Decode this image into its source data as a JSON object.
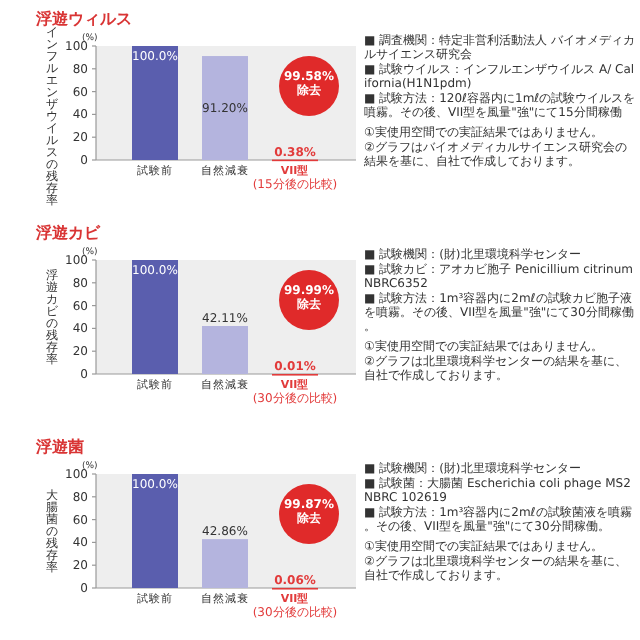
{
  "chart_data": [
    {
      "type": "bar",
      "title": "浮遊ウィルス",
      "ylabel": "インフルエンザウイルスの残存率",
      "categories": [
        "試験前",
        "自然減衰",
        "VII型"
      ],
      "values": [
        100.0,
        91.2,
        0.38
      ],
      "colors": [
        "#5a5eae",
        "#b4b4de",
        "#e23b3b"
      ],
      "value_labels": [
        "100.0%",
        "91.20%",
        "0.38%"
      ],
      "ylim": [
        0,
        100
      ],
      "yticks": [
        0,
        20,
        40,
        60,
        80,
        100
      ],
      "grid": false,
      "annotations": [
        "(%)",
        "(15分後の比較)",
        "99.58%\n除去",
        "■ 調査機関：特定非営利活動法人 バイオメディカルサイエンス研究会",
        "■ 試験ウイルス：インフルエンザウイルス A/ California(H1N1pdm)",
        "■ 試験方法：120ℓ容器内に1mℓの試験ウイルスを噴霧。その後、VII型を風量\"強\"にて15分間稼働",
        "①実使用空間での実証結果ではありません。",
        "②グラフはバイオメディカルサイエンス研究会の結果を基に、自社で作成しております。"
      ]
    },
    {
      "type": "bar",
      "title": "浮遊カビ",
      "ylabel": "浮遊カビの残存率",
      "categories": [
        "試験前",
        "自然減衰",
        "VII型"
      ],
      "values": [
        100.0,
        42.11,
        0.01
      ],
      "colors": [
        "#5a5eae",
        "#b4b4de",
        "#e23b3b"
      ],
      "value_labels": [
        "100.0%",
        "42.11%",
        "0.01%"
      ],
      "ylim": [
        0,
        100
      ],
      "yticks": [
        0,
        20,
        40,
        60,
        80,
        100
      ],
      "grid": false,
      "annotations": [
        "(%)",
        "(30分後の比較)",
        "99.99%\n除去",
        "■ 試験機関：(財)北里環境科学センター",
        "■ 試験カビ：アオカビ胞子 Penicillium citrinum NBRC6352",
        "■ 試験方法：1m³容器内に2mℓの試験カビ胞子液を噴霧。その後、VII型を風量\"強\"にて30分間稼働。",
        "①実使用空間での実証結果ではありません。",
        "②グラフは北里環境科学センターの結果を基に、自社で作成しております。"
      ]
    },
    {
      "type": "bar",
      "title": "浮遊菌",
      "ylabel": "大腸菌の残存率",
      "categories": [
        "試験前",
        "自然減衰",
        "VII型"
      ],
      "values": [
        100.0,
        42.86,
        0.06
      ],
      "colors": [
        "#5a5eae",
        "#b4b4de",
        "#e23b3b"
      ],
      "value_labels": [
        "100.0%",
        "42.86%",
        "0.06%"
      ],
      "ylim": [
        0,
        100
      ],
      "yticks": [
        0,
        20,
        40,
        60,
        80,
        100
      ],
      "grid": false,
      "annotations": [
        "(%)",
        "(30分後の比較)",
        "99.87%\n除去",
        "■ 試験機関：(財)北里環境科学センター",
        "■ 試験菌：大腸菌 Escherichia coli phage MS2 NBRC 102619",
        "■ 試験方法：1m³容器内に2mℓの試験菌液を噴霧。その後、VII型を風量\"強\"にて30分間稼働。",
        "①実使用空間での実証結果ではありません。",
        "②グラフは北里環境科学センターの結果を基に、自社で作成しております。"
      ]
    }
  ]
}
